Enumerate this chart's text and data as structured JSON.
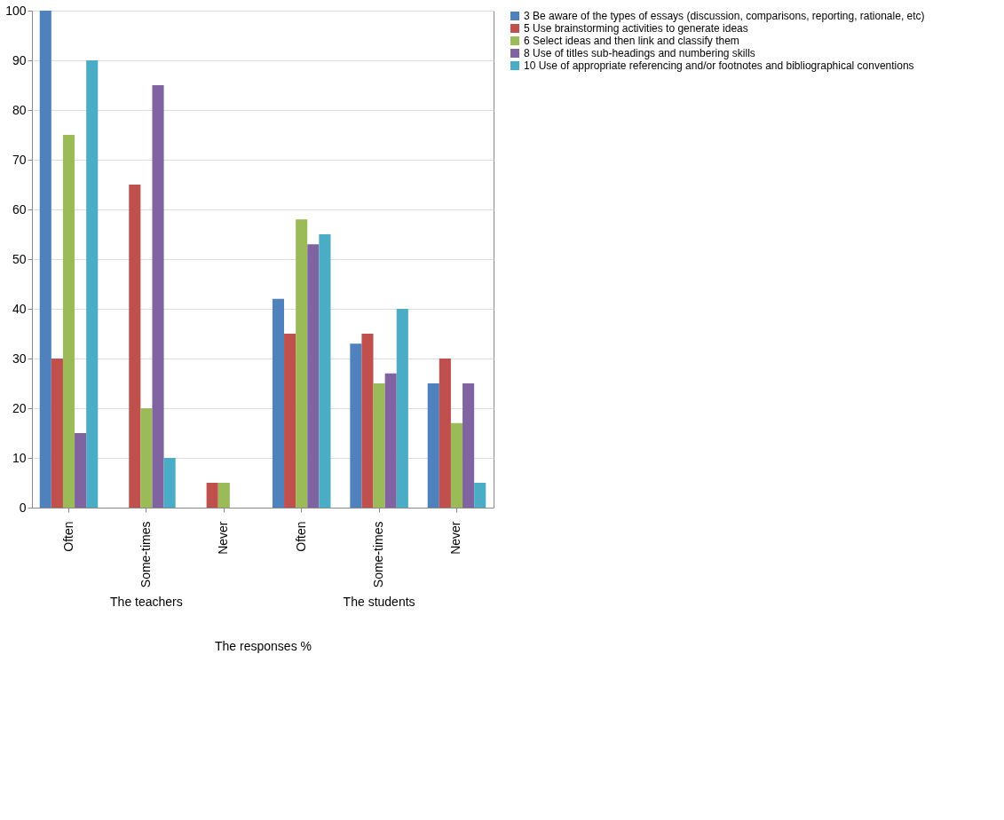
{
  "chart_data": {
    "type": "bar",
    "xlabel": "The responses %",
    "categories": [
      "Often",
      "Some-times",
      "Never",
      "Often",
      "Some-times",
      "Never"
    ],
    "series": [
      {
        "name": "3 Be aware of the types of essays (discussion, comparisons, reporting, rationale, etc)",
        "color": "#4f81bd",
        "values": [
          100,
          0,
          0,
          42,
          33,
          25
        ]
      },
      {
        "name": "5 Use brainstorming activities to generate ideas",
        "color": "#c0504d",
        "values": [
          30,
          65,
          5,
          35,
          35,
          30
        ]
      },
      {
        "name": "6 Select ideas and then link and classify them",
        "color": "#9bbb59",
        "values": [
          75,
          20,
          5,
          58,
          25,
          17
        ]
      },
      {
        "name": "8 Use of titles sub-headings and numbering skills",
        "color": "#8064a2",
        "values": [
          15,
          85,
          0,
          53,
          27,
          25
        ]
      },
      {
        "name": "10 Use of appropriate referencing and/or footnotes and bibliographical conventions",
        "color": "#4bacc6",
        "values": [
          90,
          10,
          0,
          55,
          40,
          5
        ]
      }
    ],
    "annotations": [
      "The teachers",
      "The students"
    ],
    "ylim": [
      0,
      100
    ],
    "yticks": [
      0,
      10,
      20,
      30,
      40,
      50,
      60,
      70,
      80,
      90,
      100
    ],
    "grid": "y",
    "legend": "right"
  }
}
